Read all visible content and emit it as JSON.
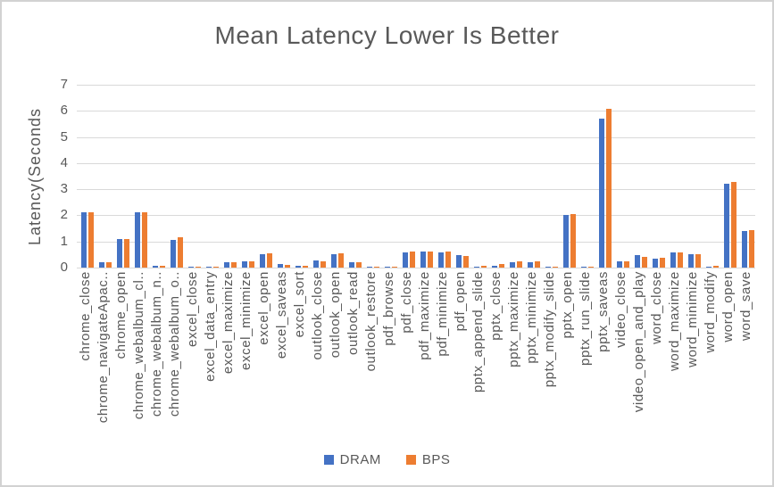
{
  "chart_data": {
    "type": "bar",
    "title": "Mean Latency Lower Is Better",
    "ylabel": "Latency(Seconds",
    "xlabel": "",
    "ylim": [
      0,
      7
    ],
    "ytick_step": 1,
    "grid": true,
    "legend_position": "bottom",
    "text_color": "#595959",
    "grid_color": "#d9d9d9",
    "categories": [
      "chrome_close",
      "chrome_navigateApac..",
      "chrome_open",
      "chrome_webalbum_cl..",
      "chrome_webalbum_n..",
      "chrome_webalbum_o..",
      "excel_close",
      "excel_data_entry",
      "excel_maximize",
      "excel_minimize",
      "excel_open",
      "excel_saveas",
      "excel_sort",
      "outlook_close",
      "outlook_open",
      "outlook_read",
      "outlook_restore",
      "pdf_browse",
      "pdf_close",
      "pdf_maximize",
      "pdf_minimize",
      "pdf_open",
      "pptx_append_slide",
      "pptx_close",
      "pptx_maximize",
      "pptx_minimize",
      "pptx_modify_slide",
      "pptx_open",
      "pptx_run_slide",
      "pptx_saveas",
      "video_close",
      "video_open_and_play",
      "word_close",
      "word_maximize",
      "word_minimize",
      "word_modify",
      "word_open",
      "word_save"
    ],
    "series": [
      {
        "name": "DRAM",
        "color": "#4472C4",
        "values": [
          2.1,
          0.2,
          1.1,
          2.1,
          0.08,
          1.05,
          0.04,
          0.04,
          0.22,
          0.25,
          0.5,
          0.13,
          0.08,
          0.27,
          0.52,
          0.22,
          0.03,
          0.03,
          0.58,
          0.6,
          0.57,
          0.47,
          0.04,
          0.08,
          0.2,
          0.22,
          0.04,
          2.0,
          0.04,
          5.7,
          0.23,
          0.48,
          0.35,
          0.58,
          0.5,
          0.04,
          3.2,
          1.39
        ]
      },
      {
        "name": "BPS",
        "color": "#ED7D31",
        "values": [
          2.1,
          0.2,
          1.1,
          2.1,
          0.08,
          1.15,
          0.04,
          0.05,
          0.22,
          0.25,
          0.55,
          0.11,
          0.07,
          0.25,
          0.55,
          0.19,
          0.05,
          0.05,
          0.62,
          0.63,
          0.6,
          0.44,
          0.06,
          0.12,
          0.23,
          0.25,
          0.05,
          2.05,
          0.05,
          6.07,
          0.25,
          0.42,
          0.39,
          0.58,
          0.5,
          0.06,
          3.28,
          1.42
        ]
      }
    ]
  }
}
